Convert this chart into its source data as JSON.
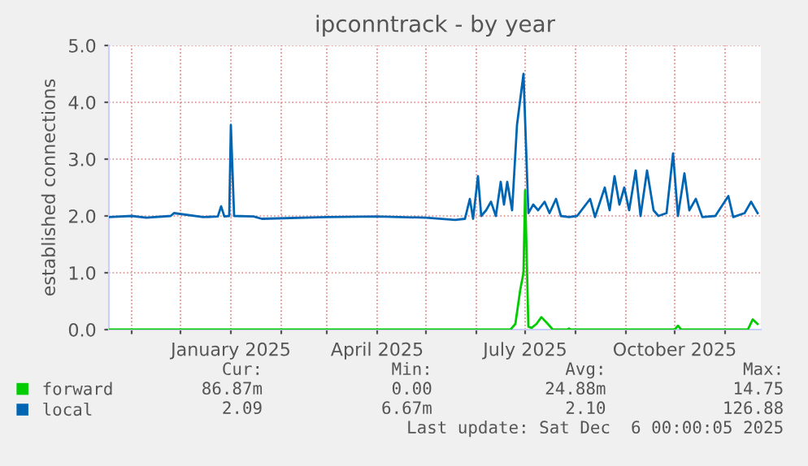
{
  "chart_data": {
    "type": "line",
    "title": "ipconntrack - by year",
    "ylabel": "established connections",
    "xlim": [
      "2024-10-18",
      "2025-11-23"
    ],
    "xticks": [
      {
        "value": "2024-11-01",
        "label": null
      },
      {
        "value": "2024-12-01",
        "label": null
      },
      {
        "value": "2025-01-01",
        "label": "January 2025"
      },
      {
        "value": "2025-02-01",
        "label": null
      },
      {
        "value": "2025-03-01",
        "label": null
      },
      {
        "value": "2025-04-01",
        "label": "April 2025"
      },
      {
        "value": "2025-05-01",
        "label": null
      },
      {
        "value": "2025-06-01",
        "label": null
      },
      {
        "value": "2025-07-01",
        "label": "July 2025"
      },
      {
        "value": "2025-08-01",
        "label": null
      },
      {
        "value": "2025-09-01",
        "label": null
      },
      {
        "value": "2025-10-01",
        "label": "October 2025"
      },
      {
        "value": "2025-11-01",
        "label": null
      }
    ],
    "ylim": [
      0,
      5
    ],
    "yticks": [
      {
        "value": 0,
        "label": "0.0"
      },
      {
        "value": 1,
        "label": "1.0"
      },
      {
        "value": 2,
        "label": "2.0"
      },
      {
        "value": 3,
        "label": "3.0"
      },
      {
        "value": 4,
        "label": "4.0"
      },
      {
        "value": 5,
        "label": "5.0"
      }
    ],
    "grid": true,
    "legend": "bottom",
    "marker": "none",
    "line_style": "solid",
    "series": [
      {
        "name": "forward",
        "color": "#00cc00",
        "x": [
          "2024-10-18",
          "2025-06-22",
          "2025-06-25",
          "2025-06-28",
          "2025-06-30",
          "2025-07-01",
          "2025-07-03",
          "2025-07-05",
          "2025-07-08",
          "2025-07-11",
          "2025-07-15",
          "2025-07-18",
          "2025-07-27",
          "2025-07-28",
          "2025-07-29",
          "2025-10-01",
          "2025-10-03",
          "2025-10-05",
          "2025-11-15",
          "2025-11-18",
          "2025-11-21"
        ],
        "values": [
          0,
          0,
          0.1,
          0.7,
          1.0,
          2.45,
          0.05,
          0.03,
          0.1,
          0.22,
          0.1,
          0,
          0,
          0.02,
          0,
          0,
          0.07,
          0,
          0,
          0.18,
          0.1
        ]
      },
      {
        "name": "local",
        "color": "#0066b3",
        "x": [
          "2024-10-18",
          "2024-11-01",
          "2024-11-10",
          "2024-11-25",
          "2024-11-27",
          "2024-12-15",
          "2024-12-24",
          "2024-12-26",
          "2024-12-28",
          "2024-12-31",
          "2025-01-01",
          "2025-01-03",
          "2025-01-15",
          "2025-01-20",
          "2025-03-01",
          "2025-04-01",
          "2025-05-01",
          "2025-05-19",
          "2025-05-25",
          "2025-05-28",
          "2025-05-30",
          "2025-06-02",
          "2025-06-04",
          "2025-06-07",
          "2025-06-10",
          "2025-06-13",
          "2025-06-16",
          "2025-06-18",
          "2025-06-20",
          "2025-06-23",
          "2025-06-26",
          "2025-06-30",
          "2025-07-03",
          "2025-07-06",
          "2025-07-09",
          "2025-07-13",
          "2025-07-16",
          "2025-07-20",
          "2025-07-23",
          "2025-07-28",
          "2025-08-02",
          "2025-08-10",
          "2025-08-13",
          "2025-08-19",
          "2025-08-22",
          "2025-08-25",
          "2025-08-28",
          "2025-08-31",
          "2025-09-03",
          "2025-09-07",
          "2025-09-10",
          "2025-09-14",
          "2025-09-18",
          "2025-09-21",
          "2025-09-26",
          "2025-09-30",
          "2025-10-03",
          "2025-10-07",
          "2025-10-10",
          "2025-10-14",
          "2025-10-18",
          "2025-10-26",
          "2025-11-03",
          "2025-11-06",
          "2025-11-13",
          "2025-11-17",
          "2025-11-21"
        ],
        "values": [
          1.98,
          2.0,
          1.97,
          2.0,
          2.05,
          1.98,
          1.99,
          2.17,
          1.99,
          2.0,
          3.6,
          2.0,
          1.99,
          1.95,
          1.98,
          1.99,
          1.97,
          1.93,
          1.95,
          2.3,
          1.95,
          2.7,
          2.0,
          2.1,
          2.25,
          2.0,
          2.6,
          2.2,
          2.6,
          2.1,
          3.6,
          4.5,
          2.05,
          2.2,
          2.1,
          2.25,
          2.05,
          2.3,
          2.0,
          1.98,
          2.0,
          2.3,
          1.98,
          2.5,
          2.1,
          2.7,
          2.2,
          2.5,
          2.1,
          2.8,
          2.0,
          2.8,
          2.1,
          2.0,
          2.05,
          3.1,
          2.0,
          2.75,
          2.1,
          2.3,
          1.98,
          2.0,
          2.35,
          1.98,
          2.05,
          2.25,
          2.05
        ]
      }
    ],
    "annotations": [
      "Cur:",
      "Min:",
      "Avg:",
      "Max:",
      "86.87m",
      "0.00",
      "24.88m",
      "14.75",
      "2.09",
      "6.67m",
      "2.10",
      "126.88",
      "Last update: Sat Dec  6 00:00:05 2025"
    ]
  }
}
